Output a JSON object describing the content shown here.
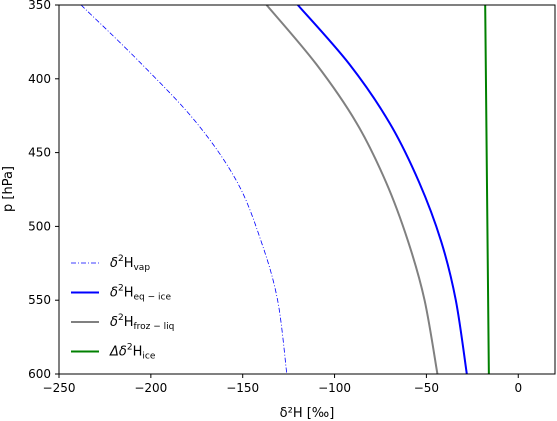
{
  "chart_data": {
    "type": "line",
    "title": "",
    "xlabel": "δ²H [‰]",
    "ylabel": "p [hPa]",
    "xlim": [
      -250,
      20
    ],
    "ylim": [
      600,
      350
    ],
    "y_inverted": true,
    "grid": false,
    "legend_placement": "lower-left",
    "x_ticks": [
      -250,
      -200,
      -150,
      -100,
      -50,
      0
    ],
    "x_tick_labels": [
      "−250",
      "−200",
      "−150",
      "−100",
      "−50",
      "0"
    ],
    "y_ticks": [
      350,
      400,
      450,
      500,
      550,
      600
    ],
    "y_tick_labels": [
      "350",
      "400",
      "450",
      "500",
      "550",
      "600"
    ],
    "series": [
      {
        "key": "vap",
        "legend_prefix": "δ",
        "legend_sup": "2",
        "legend_main": "H",
        "legend_sub": "vap",
        "color": "#0000ff",
        "style": "dashdot",
        "points": [
          [
            -238,
            350
          ],
          [
            -205,
            390
          ],
          [
            -175,
            430
          ],
          [
            -153,
            470
          ],
          [
            -140,
            510
          ],
          [
            -131,
            550
          ],
          [
            -126,
            600
          ]
        ]
      },
      {
        "key": "eq_ice",
        "legend_prefix": "δ",
        "legend_sup": "2",
        "legend_main": "H",
        "legend_sub": "eq − ice",
        "color": "#0000ff",
        "style": "solid",
        "points": [
          [
            -120,
            350
          ],
          [
            -92,
            390
          ],
          [
            -70,
            430
          ],
          [
            -54,
            470
          ],
          [
            -42,
            510
          ],
          [
            -34,
            550
          ],
          [
            -28,
            600
          ]
        ]
      },
      {
        "key": "froz_liq",
        "legend_prefix": "δ",
        "legend_sup": "2",
        "legend_main": "H",
        "legend_sub": "froz − liq",
        "color": "#808080",
        "style": "solid",
        "points": [
          [
            -137,
            350
          ],
          [
            -110,
            390
          ],
          [
            -88,
            430
          ],
          [
            -72,
            470
          ],
          [
            -60,
            510
          ],
          [
            -51,
            550
          ],
          [
            -44,
            600
          ]
        ]
      },
      {
        "key": "delta_ice",
        "legend_prefix": "Δδ",
        "legend_sup": "2",
        "legend_main": "H",
        "legend_sub": "ice",
        "color": "#008000",
        "style": "solid",
        "points": [
          [
            -18,
            350
          ],
          [
            -17,
            475
          ],
          [
            -16,
            600
          ]
        ]
      }
    ]
  }
}
